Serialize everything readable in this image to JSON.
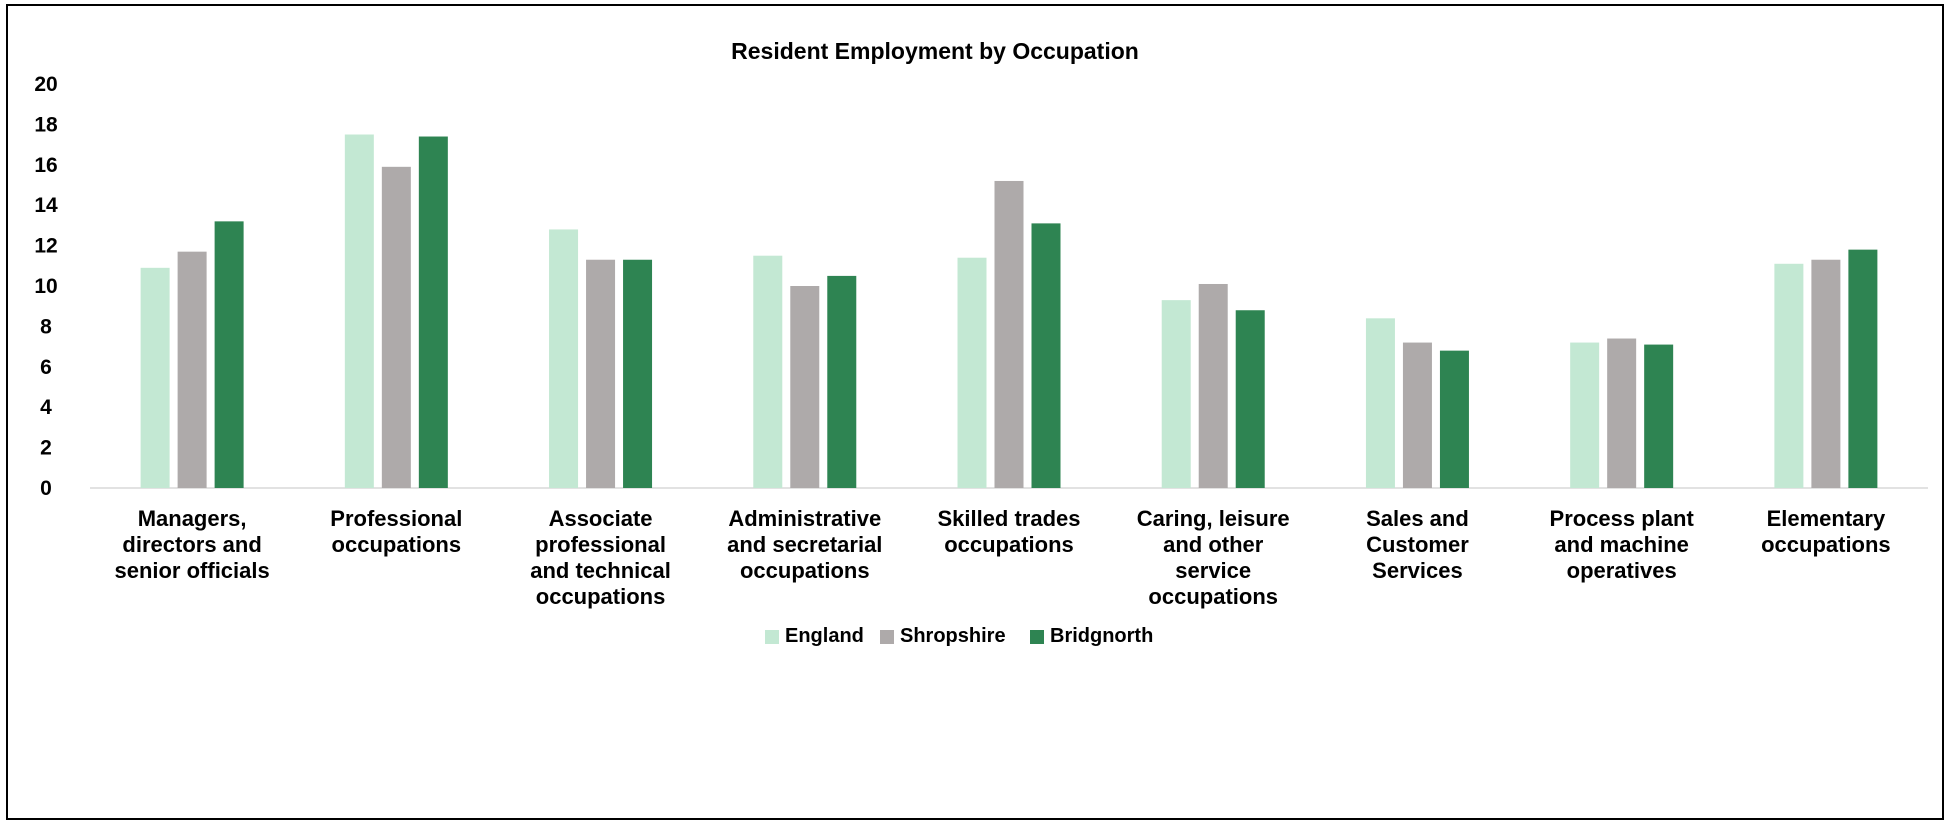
{
  "chart_data": {
    "type": "bar",
    "title": "Resident Employment by Occupation",
    "xlabel": "",
    "ylabel": "",
    "ylim": [
      0,
      20
    ],
    "yticks": [
      0,
      2,
      4,
      6,
      8,
      10,
      12,
      14,
      16,
      18,
      20
    ],
    "grid": false,
    "legend_position": "bottom",
    "categories": [
      "Managers, directors and senior officials",
      "Professional occupations",
      "Associate professional and technical occupations",
      "Administrative and secretarial occupations",
      "Skilled trades occupations",
      "Caring, leisure and other service occupations",
      "Sales and Customer Services",
      "Process plant and machine operatives",
      "Elementary occupations"
    ],
    "category_lines": [
      [
        "Managers,",
        "directors and",
        "senior officials"
      ],
      [
        "Professional",
        "occupations"
      ],
      [
        "Associate",
        "professional",
        "and technical",
        "occupations"
      ],
      [
        "Administrative",
        "and secretarial",
        "occupations"
      ],
      [
        "Skilled trades",
        "occupations"
      ],
      [
        "Caring, leisure",
        "and other",
        "service",
        "occupations"
      ],
      [
        "Sales and",
        "Customer",
        "Services"
      ],
      [
        "Process plant",
        "and machine",
        "operatives"
      ],
      [
        "Elementary",
        "occupations"
      ]
    ],
    "series": [
      {
        "name": "England",
        "color": "#c3e8d3",
        "values": [
          10.9,
          17.5,
          12.8,
          11.5,
          11.4,
          9.3,
          8.4,
          7.2,
          11.1
        ]
      },
      {
        "name": "Shropshire",
        "color": "#aeaaaa",
        "values": [
          11.7,
          15.9,
          11.3,
          10.0,
          15.2,
          10.1,
          7.2,
          7.4,
          11.3
        ]
      },
      {
        "name": "Bridgnorth",
        "color": "#2e8452",
        "values": [
          13.2,
          17.4,
          11.3,
          10.5,
          13.1,
          8.8,
          6.8,
          7.1,
          11.8
        ]
      }
    ]
  }
}
